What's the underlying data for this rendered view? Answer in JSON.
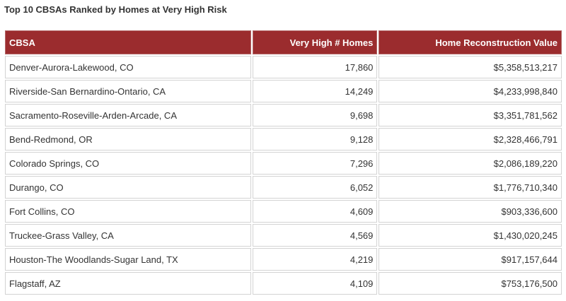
{
  "title": "Top 10 CBSAs Ranked by Homes at Very High Risk",
  "colors": {
    "header_bg": "#9b2c2e",
    "header_text": "#ffffff",
    "cell_border": "#d3d3d3"
  },
  "table": {
    "headers": [
      "CBSA",
      "Very High # Homes",
      "Home Reconstruction Value"
    ],
    "rows": [
      [
        "Denver-Aurora-Lakewood, CO",
        "17,860",
        "$5,358,513,217"
      ],
      [
        "Riverside-San Bernardino-Ontario, CA",
        "14,249",
        "$4,233,998,840"
      ],
      [
        "Sacramento-Roseville-Arden-Arcade, CA",
        "9,698",
        "$3,351,781,562"
      ],
      [
        "Bend-Redmond, OR",
        "9,128",
        "$2,328,466,791"
      ],
      [
        "Colorado Springs, CO",
        "7,296",
        "$2,086,189,220"
      ],
      [
        "Durango, CO",
        "6,052",
        "$1,776,710,340"
      ],
      [
        "Fort Collins, CO",
        "4,609",
        "$903,336,600"
      ],
      [
        "Truckee-Grass Valley, CA",
        "4,569",
        "$1,430,020,245"
      ],
      [
        "Houston-The Woodlands-Sugar Land, TX",
        "4,219",
        "$917,157,644"
      ],
      [
        "Flagstaff, AZ",
        "4,109",
        "$753,176,500"
      ]
    ]
  }
}
